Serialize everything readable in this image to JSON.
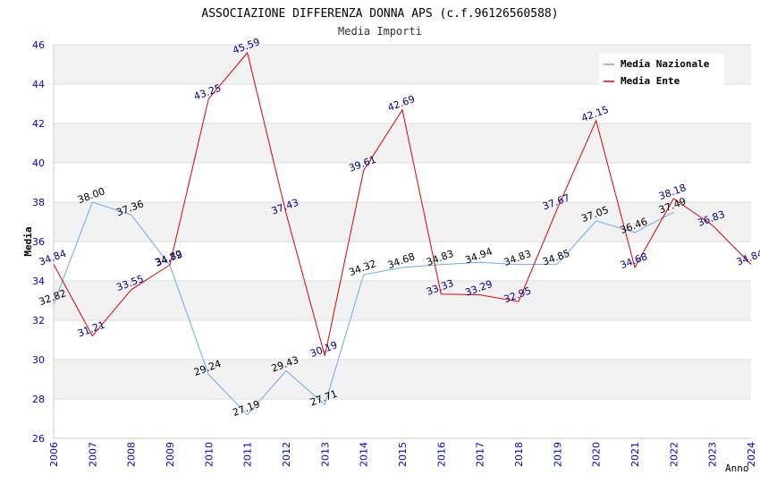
{
  "chart_data": {
    "type": "line",
    "title": "ASSOCIAZIONE DIFFERENZA DONNA APS (c.f.96126560588)",
    "subtitle": "Media Importi",
    "xlabel": "Anno",
    "ylabel": "Media",
    "ylim": [
      26,
      46
    ],
    "yticks": [
      "26",
      "28",
      "30",
      "32",
      "34",
      "36",
      "38",
      "40",
      "42",
      "44",
      "46"
    ],
    "categories": [
      "2006",
      "2007",
      "2008",
      "2009",
      "2010",
      "2011",
      "2012",
      "2013",
      "2014",
      "2015",
      "2016",
      "2017",
      "2018",
      "2019",
      "2020",
      "2021",
      "2022",
      "2023",
      "2024"
    ],
    "legend_position": "top-right",
    "series": [
      {
        "name": "Media Nazionale",
        "color": "#66aaee",
        "label_color": "#000000",
        "values": [
          32.82,
          38.0,
          37.36,
          34.79,
          29.24,
          27.19,
          29.43,
          27.71,
          34.32,
          34.68,
          34.83,
          34.94,
          34.83,
          34.85,
          37.05,
          36.46,
          37.49,
          null,
          null
        ],
        "labels": [
          "32.82",
          "38.00",
          "37.36",
          "34.79",
          "29.24",
          "27.19",
          "29.43",
          "27.71",
          "34.32",
          "34.68",
          "34.83",
          "34.94",
          "34.83",
          "34.85",
          "37.05",
          "36.46",
          "37.49",
          "",
          ""
        ]
      },
      {
        "name": "Media Ente",
        "color": "#dd0000",
        "label_color": "#000088",
        "values": [
          34.84,
          31.21,
          33.55,
          34.82,
          43.25,
          45.59,
          37.43,
          30.19,
          39.61,
          42.69,
          33.33,
          33.29,
          32.95,
          37.67,
          42.15,
          34.68,
          38.18,
          36.83,
          34.84
        ],
        "labels": [
          "34.84",
          "31.21",
          "33.55",
          "34.82",
          "43.25",
          "45.59",
          "37.43",
          "30.19",
          "39.61",
          "42.69",
          "33.33",
          "33.29",
          "32.95",
          "37.67",
          "42.15",
          "34.68",
          "38.18",
          "36.83",
          "34.84"
        ]
      }
    ]
  }
}
